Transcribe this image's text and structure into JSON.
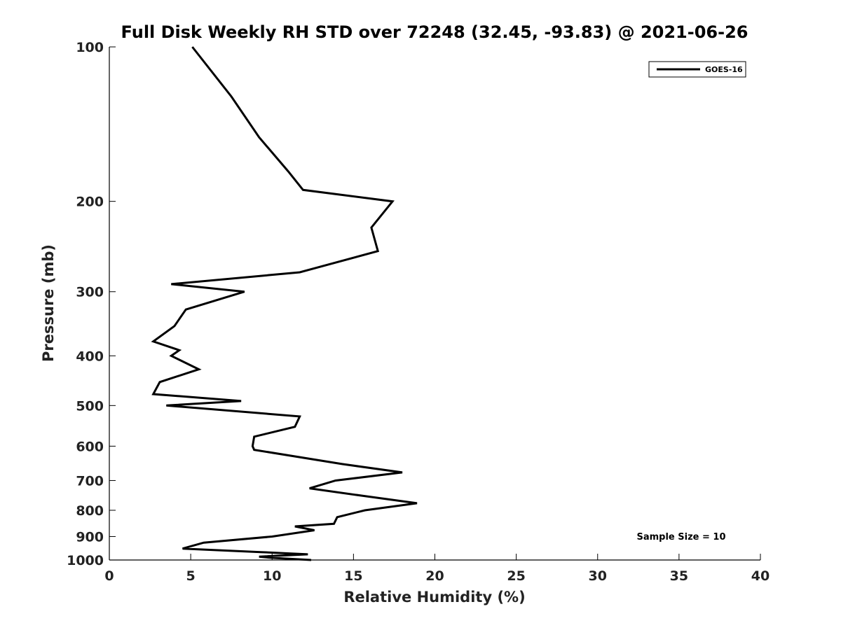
{
  "chart_data": {
    "type": "line",
    "title": "Full Disk Weekly RH STD over 72248 (32.45, -93.83) @ 2021-06-26",
    "xlabel": "Relative Humidity (%)",
    "ylabel": "Pressure (mb)",
    "xlim": [
      0,
      40
    ],
    "ylim": [
      1000,
      100
    ],
    "yscale": "log",
    "y_inverted": true,
    "x_ticks": [
      0,
      5,
      10,
      15,
      20,
      25,
      30,
      35,
      40
    ],
    "y_ticks": [
      100,
      200,
      300,
      400,
      500,
      600,
      700,
      800,
      900,
      1000
    ],
    "grid": false,
    "legend_position": "top-right",
    "annotation": "Sample Size = 10",
    "series": [
      {
        "name": "GOES-16",
        "color": "#000000",
        "points": [
          [
            5.1,
            100
          ],
          [
            7.5,
            125
          ],
          [
            9.2,
            150
          ],
          [
            11.0,
            175
          ],
          [
            11.9,
            190
          ],
          [
            17.4,
            200
          ],
          [
            16.1,
            225
          ],
          [
            16.5,
            250
          ],
          [
            11.7,
            275
          ],
          [
            3.8,
            290
          ],
          [
            8.3,
            300
          ],
          [
            4.7,
            325
          ],
          [
            4.0,
            350
          ],
          [
            2.7,
            375
          ],
          [
            4.3,
            390
          ],
          [
            3.8,
            400
          ],
          [
            5.5,
            425
          ],
          [
            3.1,
            450
          ],
          [
            2.7,
            475
          ],
          [
            8.1,
            490
          ],
          [
            3.5,
            500
          ],
          [
            11.7,
            525
          ],
          [
            11.4,
            550
          ],
          [
            8.9,
            575
          ],
          [
            8.8,
            600
          ],
          [
            8.9,
            610
          ],
          [
            14.3,
            650
          ],
          [
            18.0,
            675
          ],
          [
            13.9,
            700
          ],
          [
            12.3,
            725
          ],
          [
            15.6,
            750
          ],
          [
            18.9,
            775
          ],
          [
            15.7,
            800
          ],
          [
            14.0,
            825
          ],
          [
            13.8,
            850
          ],
          [
            11.4,
            860
          ],
          [
            12.6,
            875
          ],
          [
            10.0,
            900
          ],
          [
            5.8,
            925
          ],
          [
            4.5,
            950
          ],
          [
            9.3,
            965
          ],
          [
            12.2,
            975
          ],
          [
            9.2,
            985
          ],
          [
            9.9,
            990
          ],
          [
            12.4,
            1000
          ]
        ]
      }
    ]
  }
}
